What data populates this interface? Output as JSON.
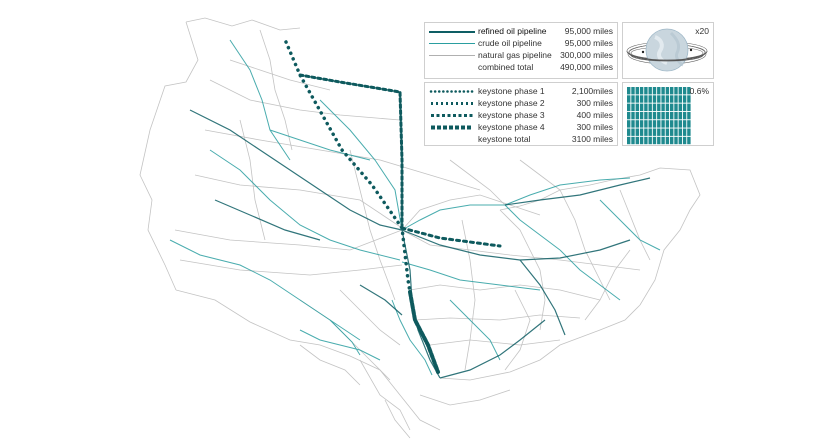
{
  "colors": {
    "refined": "#0e5e64",
    "crude": "#2a9ea0",
    "gas": "#b9b9b9",
    "keystone": "#0e5a5e",
    "globe": "#9fb8c8"
  },
  "legend_pipelines": [
    {
      "label": "refined oil pipeline",
      "value": "95,000 miles",
      "style": "refined"
    },
    {
      "label": "crude oil pipeline",
      "value": "95,000 miles",
      "style": "crude"
    },
    {
      "label": "natural gas pipeline",
      "value": "300,000 miles",
      "style": "gas"
    },
    {
      "label": "combined total",
      "value": "490,000 miles",
      "style": "none"
    }
  ],
  "legend_keystone": [
    {
      "label": "keystone phase 1",
      "value": "2,100miles",
      "style": "dot1"
    },
    {
      "label": "keystone phase 2",
      "value": "300 miles",
      "style": "dot2"
    },
    {
      "label": "keystone phase 3",
      "value": "400 miles",
      "style": "dot3"
    },
    {
      "label": "keystone phase 4",
      "value": "300 miles",
      "style": "dot4"
    },
    {
      "label": "keystone total",
      "value": "3100 miles",
      "style": "none"
    }
  ],
  "globe": {
    "multiplier": "x20",
    "icon": "globe-icon"
  },
  "percentage": {
    "value": "0.6%",
    "fraction": 0.006
  }
}
